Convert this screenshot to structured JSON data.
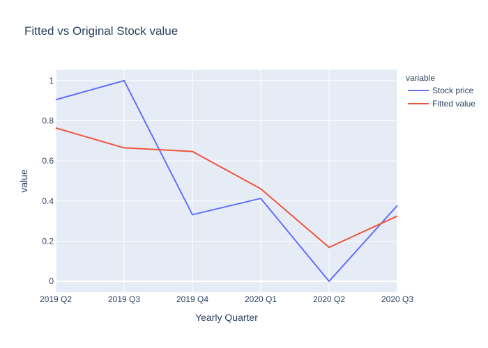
{
  "chart_data": {
    "type": "line",
    "title": "Fitted vs Original Stock value",
    "xlabel": "Yearly Quarter",
    "ylabel": "value",
    "categories": [
      "2019 Q2",
      "2019 Q3",
      "2019 Q4",
      "2020 Q1",
      "2020 Q2",
      "2020 Q3"
    ],
    "ylim": [
      -0.055,
      1.055
    ],
    "yticks": [
      0,
      0.2,
      0.4,
      0.6,
      0.8,
      1
    ],
    "ytick_labels": [
      "0",
      "0.2",
      "0.4",
      "0.6",
      "0.8",
      "1"
    ],
    "grid": true,
    "legend_title": "variable",
    "legend_position": "top-right outside",
    "series": [
      {
        "name": "Stock price",
        "color": "#636efa",
        "values": [
          0.905,
          1.0,
          0.332,
          0.413,
          0.0,
          0.378
        ]
      },
      {
        "name": "Fitted value",
        "color": "#ef553b",
        "values": [
          0.764,
          0.665,
          0.647,
          0.461,
          0.169,
          0.325
        ]
      }
    ],
    "plot_background": "#e5ecf6"
  }
}
